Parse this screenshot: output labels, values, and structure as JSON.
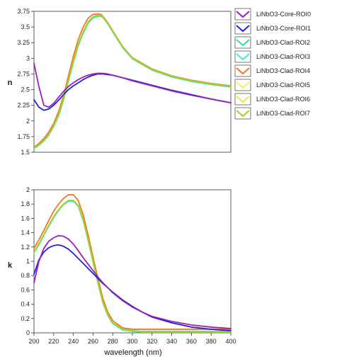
{
  "chart_data": {
    "type": "line",
    "legend": {
      "placement": "right",
      "entries": [
        {
          "name": "LiNbO3-Core-ROI0",
          "color": "#9a1fb8"
        },
        {
          "name": "LiNbO3-Core-ROI1",
          "color": "#1f24d6"
        },
        {
          "name": "LiNbO3-Clad-ROI2",
          "color": "#2ee0a8"
        },
        {
          "name": "LiNbO3-Clad-ROI3",
          "color": "#40e8e0"
        },
        {
          "name": "LiNbO3-Clad-ROI4",
          "color": "#f07820"
        },
        {
          "name": "LiNbO3-Clad-ROI5",
          "color": "#f0f060"
        },
        {
          "name": "LiNbO3-Clad-ROI6",
          "color": "#e8e840"
        },
        {
          "name": "LiNbO3-Clad-ROI7",
          "color": "#a8d020"
        }
      ]
    },
    "plots": [
      {
        "id": "n",
        "ylabel": "n",
        "xlabel": "",
        "xlim": [
          200,
          400
        ],
        "ylim": [
          1.5,
          3.75
        ],
        "yticks": [
          "1.5",
          "1.75",
          "2",
          "2.25",
          "2.5",
          "2.75",
          "3",
          "3.25",
          "3.5",
          "3.75"
        ],
        "x": [
          200,
          205,
          210,
          215,
          220,
          225,
          230,
          235,
          240,
          245,
          250,
          255,
          260,
          265,
          268,
          270,
          275,
          280,
          290,
          300,
          320,
          340,
          360,
          380,
          400
        ],
        "series": [
          {
            "name": "LiNbO3-Core-ROI0",
            "values": [
              2.92,
              2.55,
              2.25,
              2.22,
              2.28,
              2.38,
              2.47,
              2.55,
              2.61,
              2.66,
              2.7,
              2.73,
              2.75,
              2.76,
              2.76,
              2.76,
              2.75,
              2.73,
              2.69,
              2.64,
              2.56,
              2.48,
              2.41,
              2.35,
              2.29
            ]
          },
          {
            "name": "LiNbO3-Core-ROI1",
            "values": [
              2.34,
              2.22,
              2.17,
              2.19,
              2.25,
              2.33,
              2.42,
              2.5,
              2.56,
              2.61,
              2.66,
              2.7,
              2.73,
              2.75,
              2.75,
              2.75,
              2.74,
              2.73,
              2.69,
              2.65,
              2.57,
              2.49,
              2.42,
              2.35,
              2.29
            ]
          },
          {
            "name": "LiNbO3-Clad-ROI2",
            "values": [
              1.57,
              1.62,
              1.69,
              1.78,
              1.92,
              2.1,
              2.35,
              2.65,
              2.95,
              3.22,
              3.42,
              3.58,
              3.66,
              3.69,
              3.68,
              3.66,
              3.56,
              3.43,
              3.18,
              3.0,
              2.82,
              2.71,
              2.64,
              2.59,
              2.55
            ]
          },
          {
            "name": "LiNbO3-Clad-ROI3",
            "values": [
              1.56,
              1.61,
              1.68,
              1.77,
              1.91,
              2.08,
              2.33,
              2.63,
              2.93,
              3.2,
              3.4,
              3.56,
              3.64,
              3.67,
              3.67,
              3.65,
              3.55,
              3.42,
              3.17,
              2.99,
              2.81,
              2.7,
              2.63,
              2.58,
              2.54
            ]
          },
          {
            "name": "LiNbO3-Clad-ROI4",
            "values": [
              1.58,
              1.64,
              1.72,
              1.82,
              1.96,
              2.15,
              2.4,
              2.72,
              3.03,
              3.3,
              3.5,
              3.64,
              3.7,
              3.71,
              3.7,
              3.67,
              3.57,
              3.44,
              3.19,
              3.01,
              2.83,
              2.72,
              2.65,
              2.6,
              2.56
            ]
          },
          {
            "name": "LiNbO3-Clad-ROI5",
            "values": [
              1.57,
              1.62,
              1.69,
              1.78,
              1.92,
              2.1,
              2.35,
              2.65,
              2.95,
              3.22,
              3.42,
              3.58,
              3.66,
              3.69,
              3.68,
              3.66,
              3.56,
              3.43,
              3.18,
              3.0,
              2.82,
              2.71,
              2.64,
              2.59,
              2.55
            ]
          },
          {
            "name": "LiNbO3-Clad-ROI6",
            "values": [
              1.57,
              1.62,
              1.69,
              1.78,
              1.92,
              2.1,
              2.35,
              2.65,
              2.95,
              3.22,
              3.42,
              3.58,
              3.66,
              3.69,
              3.68,
              3.66,
              3.56,
              3.43,
              3.18,
              3.0,
              2.82,
              2.71,
              2.64,
              2.59,
              2.55
            ]
          },
          {
            "name": "LiNbO3-Clad-ROI7",
            "values": [
              1.57,
              1.62,
              1.69,
              1.78,
              1.92,
              2.1,
              2.35,
              2.65,
              2.95,
              3.22,
              3.42,
              3.58,
              3.66,
              3.69,
              3.68,
              3.66,
              3.56,
              3.43,
              3.18,
              3.0,
              2.82,
              2.71,
              2.64,
              2.59,
              2.55
            ]
          }
        ]
      },
      {
        "id": "k",
        "ylabel": "k",
        "xlabel": "wavelength (nm)",
        "xlim": [
          200,
          400
        ],
        "ylim": [
          0,
          2
        ],
        "xticks": [
          "200",
          "220",
          "240",
          "260",
          "280",
          "300",
          "320",
          "340",
          "360",
          "380",
          "400"
        ],
        "yticks": [
          "0",
          "0.2",
          "0.4",
          "0.6",
          "0.8",
          "1",
          "1.2",
          "1.4",
          "1.6",
          "1.8",
          "2"
        ],
        "x": [
          200,
          205,
          210,
          215,
          220,
          225,
          230,
          235,
          240,
          245,
          250,
          255,
          260,
          265,
          270,
          275,
          280,
          290,
          300,
          310,
          320,
          340,
          360,
          380,
          400
        ],
        "series": [
          {
            "name": "LiNbO3-Core-ROI0",
            "values": [
              0.7,
              1.0,
              1.18,
              1.28,
              1.33,
              1.36,
              1.35,
              1.31,
              1.24,
              1.15,
              1.05,
              0.96,
              0.87,
              0.78,
              0.7,
              0.63,
              0.56,
              0.45,
              0.36,
              0.29,
              0.23,
              0.16,
              0.11,
              0.08,
              0.06
            ]
          },
          {
            "name": "LiNbO3-Core-ROI1",
            "values": [
              0.82,
              1.02,
              1.13,
              1.19,
              1.22,
              1.23,
              1.21,
              1.17,
              1.11,
              1.04,
              0.97,
              0.9,
              0.83,
              0.76,
              0.69,
              0.63,
              0.57,
              0.46,
              0.37,
              0.29,
              0.22,
              0.14,
              0.08,
              0.05,
              0.03
            ]
          },
          {
            "name": "LiNbO3-Clad-ROI2",
            "values": [
              1.13,
              1.24,
              1.37,
              1.5,
              1.62,
              1.72,
              1.8,
              1.85,
              1.85,
              1.78,
              1.58,
              1.3,
              1.0,
              0.7,
              0.43,
              0.25,
              0.14,
              0.05,
              0.03,
              0.02,
              0.02,
              0.02,
              0.02,
              0.02,
              0.02
            ]
          },
          {
            "name": "LiNbO3-Clad-ROI3",
            "values": [
              1.12,
              1.23,
              1.36,
              1.49,
              1.61,
              1.71,
              1.79,
              1.84,
              1.84,
              1.77,
              1.57,
              1.29,
              0.99,
              0.69,
              0.42,
              0.24,
              0.13,
              0.04,
              0.02,
              0.01,
              0.01,
              0.01,
              0.01,
              0.01,
              0.01
            ]
          },
          {
            "name": "LiNbO3-Clad-ROI4",
            "values": [
              1.18,
              1.3,
              1.43,
              1.57,
              1.7,
              1.8,
              1.88,
              1.93,
              1.93,
              1.85,
              1.65,
              1.37,
              1.06,
              0.76,
              0.48,
              0.29,
              0.17,
              0.07,
              0.05,
              0.05,
              0.05,
              0.05,
              0.05,
              0.05,
              0.05
            ]
          },
          {
            "name": "LiNbO3-Clad-ROI5",
            "values": [
              1.13,
              1.24,
              1.37,
              1.5,
              1.62,
              1.72,
              1.8,
              1.85,
              1.85,
              1.78,
              1.58,
              1.3,
              1.0,
              0.7,
              0.43,
              0.25,
              0.14,
              0.05,
              0.03,
              0.02,
              0.02,
              0.02,
              0.02,
              0.02,
              0.02
            ]
          },
          {
            "name": "LiNbO3-Clad-ROI6",
            "values": [
              1.13,
              1.24,
              1.37,
              1.5,
              1.62,
              1.72,
              1.8,
              1.85,
              1.85,
              1.78,
              1.58,
              1.3,
              1.0,
              0.7,
              0.43,
              0.25,
              0.14,
              0.05,
              0.03,
              0.02,
              0.02,
              0.02,
              0.02,
              0.02,
              0.02
            ]
          },
          {
            "name": "LiNbO3-Clad-ROI7",
            "values": [
              1.13,
              1.24,
              1.37,
              1.5,
              1.62,
              1.72,
              1.8,
              1.85,
              1.85,
              1.78,
              1.58,
              1.3,
              1.0,
              0.7,
              0.43,
              0.25,
              0.14,
              0.05,
              0.03,
              0.02,
              0.02,
              0.02,
              0.02,
              0.02,
              0.02
            ]
          }
        ]
      }
    ]
  }
}
